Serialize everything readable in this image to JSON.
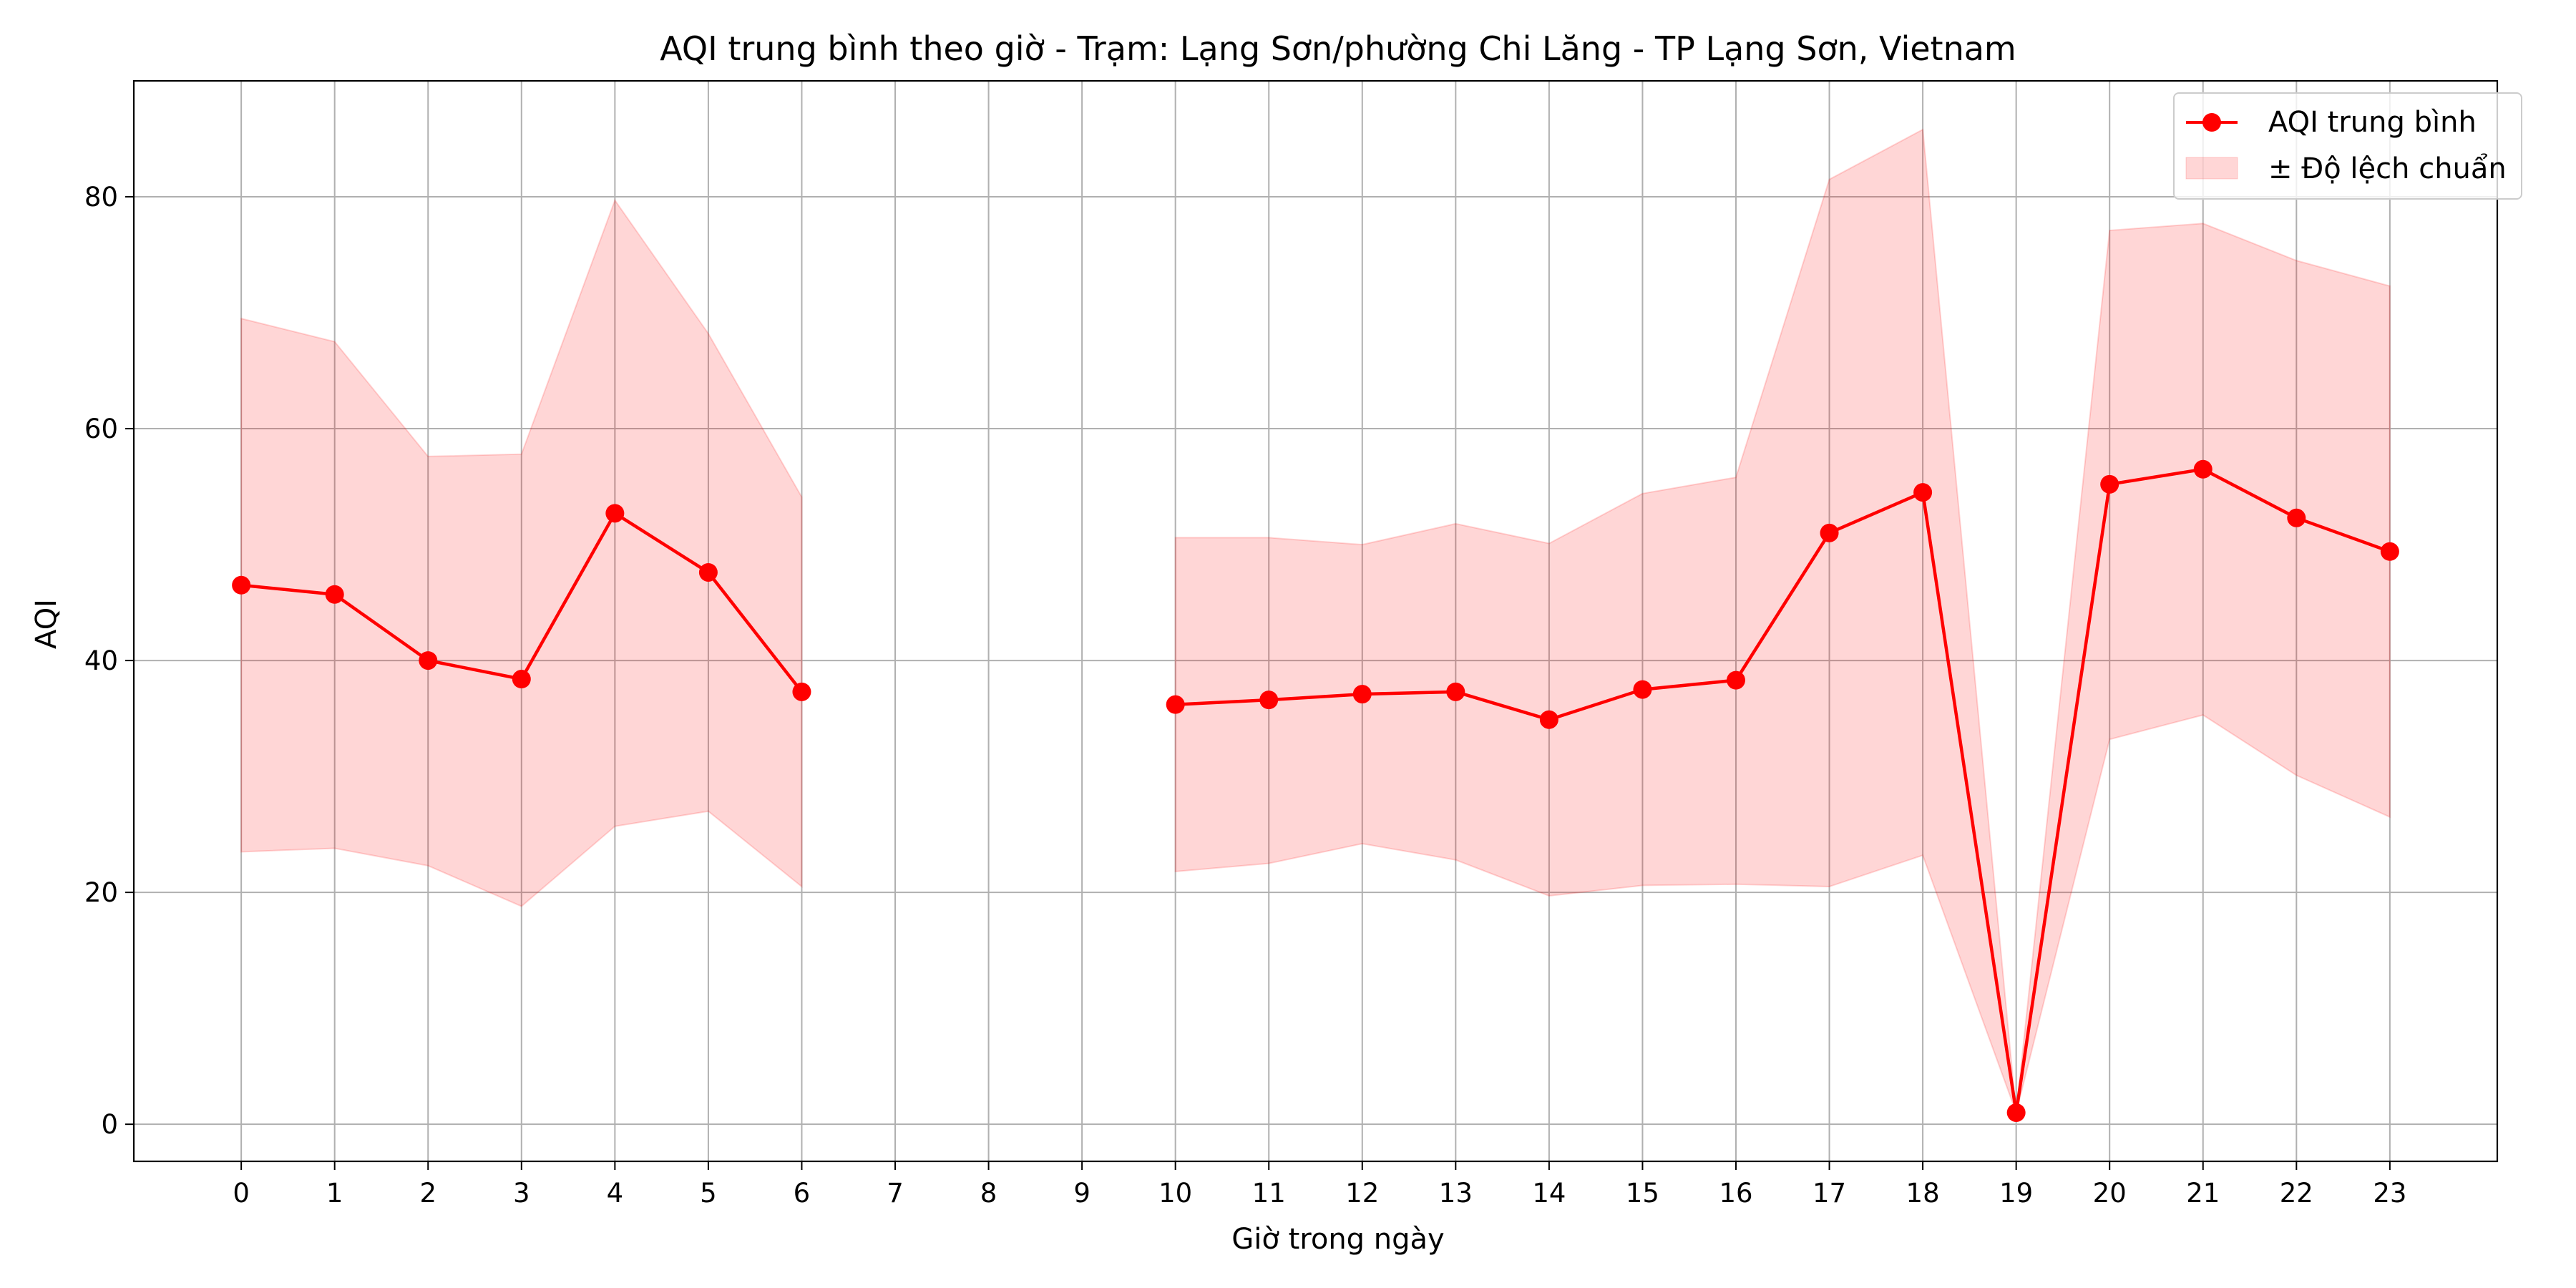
{
  "chart_data": {
    "type": "line",
    "title": "AQI trung bình theo giờ - Trạm: Lạng Sơn/phường Chi Lăng - TP Lạng Sơn, Vietnam",
    "xlabel": "Giờ trong ngày",
    "ylabel": "AQI",
    "x": [
      0,
      1,
      2,
      3,
      4,
      5,
      6,
      10,
      11,
      12,
      13,
      14,
      15,
      16,
      17,
      18,
      19,
      20,
      21,
      22,
      23
    ],
    "xticks": [
      "0",
      "1",
      "2",
      "3",
      "4",
      "5",
      "6",
      "7",
      "8",
      "9",
      "10",
      "11",
      "12",
      "13",
      "14",
      "15",
      "16",
      "17",
      "18",
      "19",
      "20",
      "21",
      "22",
      "23"
    ],
    "yticks": [
      "0",
      "20",
      "40",
      "60",
      "80"
    ],
    "ylim": [
      -3.2,
      90
    ],
    "xlim": [
      -1.15,
      24.15
    ],
    "grid": true,
    "legend_position": "top-right",
    "series": [
      {
        "name": "AQI trung bình",
        "color": "#ff0000",
        "marker": "circle",
        "values": [
          46.5,
          45.7,
          40.0,
          38.4,
          52.7,
          47.6,
          37.3,
          36.2,
          36.6,
          37.1,
          37.3,
          34.9,
          37.5,
          38.3,
          51.0,
          54.5,
          1.0,
          55.2,
          56.5,
          52.3,
          49.4
        ]
      },
      {
        "name": "± Độ lệch chuẩn",
        "color": "#ff0000",
        "fill_opacity": 0.16,
        "lower": [
          23.5,
          23.8,
          22.3,
          18.8,
          25.7,
          27.0,
          20.5,
          21.8,
          22.5,
          24.2,
          22.8,
          19.7,
          20.6,
          20.7,
          20.5,
          23.2,
          1.0,
          33.2,
          35.3,
          30.1,
          26.5
        ],
        "upper": [
          69.5,
          67.5,
          57.6,
          57.8,
          79.7,
          68.2,
          54.1,
          50.6,
          50.6,
          50.0,
          51.8,
          50.1,
          54.4,
          55.8,
          81.5,
          85.8,
          1.0,
          77.1,
          77.7,
          74.5,
          72.3
        ]
      }
    ]
  }
}
